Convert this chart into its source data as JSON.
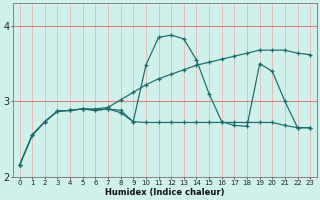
{
  "xlabel": "Humidex (Indice chaleur)",
  "x_ticks": [
    0,
    1,
    2,
    3,
    4,
    5,
    6,
    7,
    8,
    9,
    10,
    11,
    12,
    13,
    14,
    15,
    16,
    17,
    18,
    19,
    20,
    21,
    22,
    23
  ],
  "xlim": [
    -0.5,
    23.5
  ],
  "ylim": [
    2.0,
    4.3
  ],
  "y_ticks": [
    2,
    3,
    4
  ],
  "bg_color": "#cff0eb",
  "line_color": "#1a6b6b",
  "series": [
    [
      2.15,
      2.55,
      2.73,
      2.87,
      2.88,
      2.9,
      2.88,
      2.9,
      2.88,
      2.73,
      3.48,
      3.85,
      3.88,
      3.83,
      3.55,
      3.1,
      2.73,
      2.68,
      2.67,
      3.5,
      3.4,
      3.0,
      2.65,
      2.65
    ],
    [
      2.15,
      2.55,
      2.73,
      2.87,
      2.88,
      2.9,
      2.88,
      2.9,
      2.85,
      2.73,
      2.72,
      2.72,
      2.72,
      2.72,
      2.72,
      2.72,
      2.72,
      2.72,
      2.72,
      2.72,
      2.72,
      2.68,
      2.65,
      2.65
    ],
    [
      2.15,
      2.55,
      2.73,
      2.87,
      2.88,
      2.9,
      2.9,
      2.92,
      3.02,
      3.12,
      3.22,
      3.3,
      3.36,
      3.42,
      3.48,
      3.52,
      3.56,
      3.6,
      3.64,
      3.68,
      3.68,
      3.68,
      3.64,
      3.62
    ]
  ],
  "xlabel_fontsize": 6.0,
  "ytick_fontsize": 7.0,
  "xtick_fontsize": 5.0
}
